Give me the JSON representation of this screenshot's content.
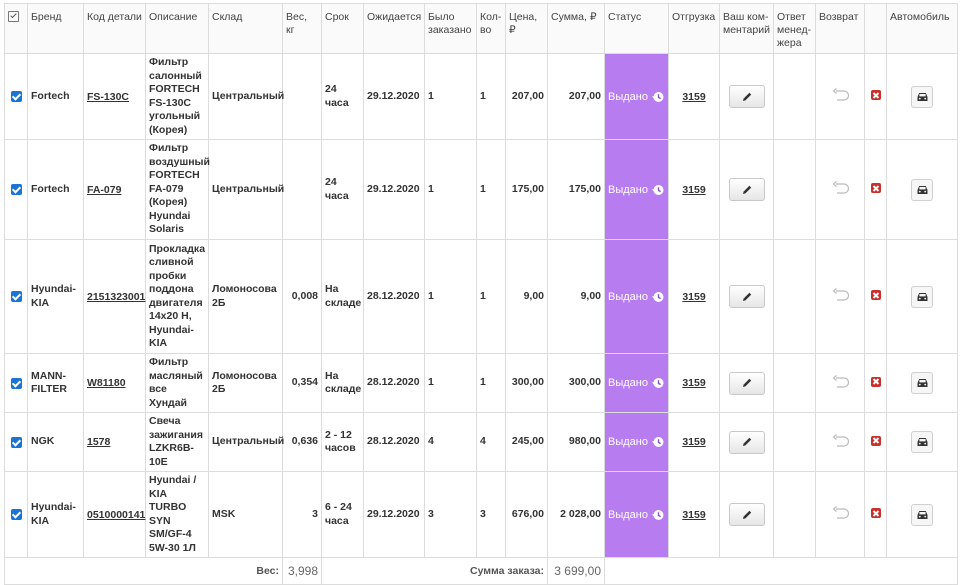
{
  "headers": {
    "brand": "Бренд",
    "part_code": "Код детали",
    "description": "Описание",
    "warehouse": "Склад",
    "weight": "Вес, кг",
    "term": "Срок",
    "expected": "Ожидается",
    "ordered": "Было заказано",
    "qty": "Кол-во",
    "price": "Цена, ₽",
    "sum": "Сумма, ₽",
    "status": "Статус",
    "shipment": "Отгрузка",
    "your_comment": "Ваш ком-ментарий",
    "manager_reply": "Ответ менед-жера",
    "return": "Возврат",
    "car": "Автомобиль"
  },
  "rows": [
    {
      "brand": "Fortech",
      "code": "FS-130C",
      "description": "Фильтр салонный FORTECH FS-130C угольный (Корея)",
      "warehouse": "Центральный",
      "weight": "",
      "term": "24 часа",
      "expected": "29.12.2020",
      "ordered": "1",
      "qty": "1",
      "price": "207,00",
      "sum": "207,00",
      "status": "Выдано",
      "shipment": "3159"
    },
    {
      "brand": "Fortech",
      "code": "FA-079",
      "description": "Фильтр воздушный FORTECH FA-079 (Корея) Hyundai Solaris",
      "warehouse": "Центральный",
      "weight": "",
      "term": "24 часа",
      "expected": "29.12.2020",
      "ordered": "1",
      "qty": "1",
      "price": "175,00",
      "sum": "175,00",
      "status": "Выдано",
      "shipment": "3159"
    },
    {
      "brand": "Hyundai-KIA",
      "code": "2151323001",
      "description": "Прокладка сливной пробки поддона двигателя 14x20 H, Hyundai-KIA",
      "warehouse": "Ломоносова 2Б",
      "weight": "0,008",
      "term": "На складе",
      "expected": "28.12.2020",
      "ordered": "1",
      "qty": "1",
      "price": "9,00",
      "sum": "9,00",
      "status": "Выдано",
      "shipment": "3159"
    },
    {
      "brand": "MANN-FILTER",
      "code": "W81180",
      "description": "Фильтр масляный все Хундай",
      "warehouse": "Ломоносова 2Б",
      "weight": "0,354",
      "term": "На складе",
      "expected": "28.12.2020",
      "ordered": "1",
      "qty": "1",
      "price": "300,00",
      "sum": "300,00",
      "status": "Выдано",
      "shipment": "3159"
    },
    {
      "brand": "NGK",
      "code": "1578",
      "description": "Свеча зажигания LZKR6B-10E",
      "warehouse": "Центральный",
      "weight": "0,636",
      "term": "2 - 12 часов",
      "expected": "28.12.2020",
      "ordered": "4",
      "qty": "4",
      "price": "245,00",
      "sum": "980,00",
      "status": "Выдано",
      "shipment": "3159"
    },
    {
      "brand": "Hyundai-KIA",
      "code": "0510000141",
      "description": "Hyundai / KIA TURBO SYN SM/GF-4 5W-30 1Л",
      "warehouse": "MSK",
      "weight": "3",
      "term": "6 - 24 часа",
      "expected": "29.12.2020",
      "ordered": "3",
      "qty": "3",
      "price": "676,00",
      "sum": "2 028,00",
      "status": "Выдано",
      "shipment": "3159"
    }
  ],
  "footer": {
    "weight_label": "Вес:",
    "weight_total": "3,998",
    "sum_label": "Сумма заказа:",
    "sum_total": "3 699,00"
  },
  "colors": {
    "status_bg": "#b77cf0",
    "checkbox": "#1a74d4",
    "delete": "#c9302c"
  },
  "icons": {
    "status": "history-icon",
    "comment": "pencil-icon",
    "return": "undo-arrow-icon",
    "delete": "delete-icon",
    "car": "car-icon"
  }
}
